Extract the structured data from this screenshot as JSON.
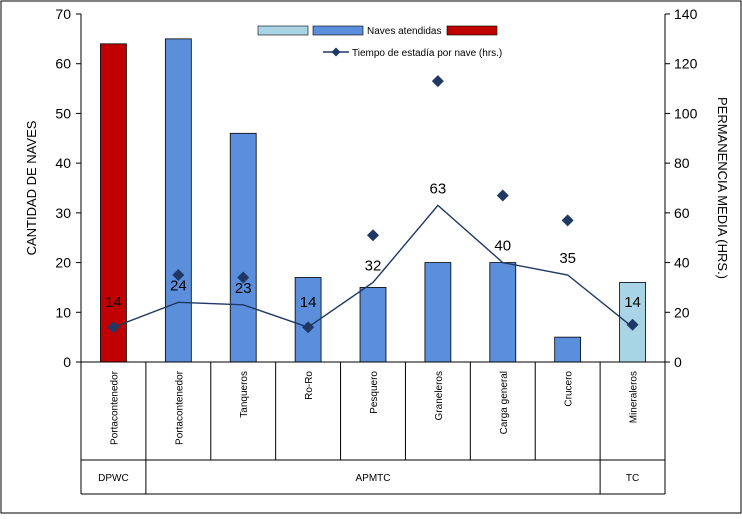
{
  "chart_data": {
    "type": "bar",
    "categories": [
      "Portacontenedor",
      "Portacontenedor",
      "Tanqueros",
      "Ro-Ro",
      "Pesquero",
      "Graneleros",
      "Carga general",
      "Crucero",
      "Mineraleros"
    ],
    "groups": [
      {
        "label": "DPWC",
        "start": 0,
        "end": 0
      },
      {
        "label": "APMTC",
        "start": 1,
        "end": 7
      },
      {
        "label": "TC",
        "start": 8,
        "end": 8
      }
    ],
    "bar_values": [
      64,
      65,
      46,
      17,
      15,
      20,
      20,
      5,
      16
    ],
    "bar_colors": [
      "#c00000",
      "#5b8fdb",
      "#5b8fdb",
      "#5b8fdb",
      "#5b8fdb",
      "#5b8fdb",
      "#5b8fdb",
      "#5b8fdb",
      "#a8d4e6"
    ],
    "series": [
      {
        "name": "Naves atendidas",
        "axis": "left",
        "values": [
          64,
          65,
          46,
          17,
          15,
          20,
          20,
          5,
          16
        ]
      },
      {
        "name": "Tiempo de estadía por nave (hrs.)",
        "axis": "right",
        "values": [
          14,
          24,
          23,
          14,
          32,
          63,
          40,
          35,
          14
        ]
      }
    ],
    "point_values": [
      7,
      17.5,
      17,
      7,
      25.5,
      56.5,
      33.5,
      28.5,
      7.5
    ],
    "point_labels": [
      "14",
      "24",
      "23",
      "14",
      "32",
      "63",
      "40",
      "35",
      "14"
    ],
    "label_offsets": [
      20,
      12,
      12,
      20,
      12,
      12,
      12,
      12,
      20
    ],
    "ylabel": "CANTIDAD DE NAVES",
    "y2label": "PERMANENCIA  MEDIA  (HRS.)",
    "ylim": [
      0,
      70
    ],
    "y2lim": [
      0,
      140
    ],
    "yticks": [
      "0",
      "10",
      "20",
      "30",
      "40",
      "50",
      "60",
      "70"
    ],
    "y2ticks": [
      "0",
      "20",
      "40",
      "60",
      "80",
      "100",
      "120",
      "140"
    ],
    "legend_position": "top",
    "colors": {
      "dpwc": "#c00000",
      "apmtc": "#5b8fdb",
      "tc": "#a8d4e6",
      "line": "#1f3864"
    }
  }
}
